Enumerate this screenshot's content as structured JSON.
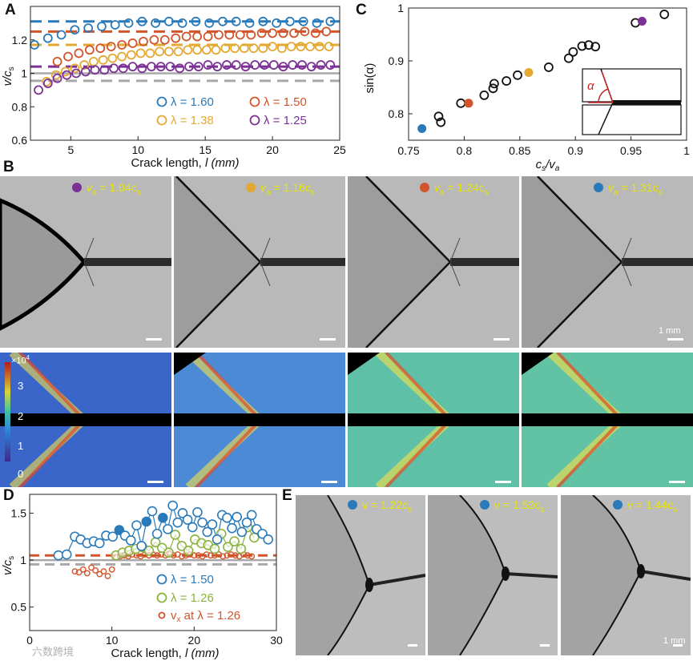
{
  "panels": {
    "A": {
      "letter": "A"
    },
    "B": {
      "letter": "B"
    },
    "C": {
      "letter": "C"
    },
    "D": {
      "letter": "D"
    },
    "E": {
      "letter": "E"
    }
  },
  "colors": {
    "blue": "#2a7ab9",
    "red": "#d2542a",
    "gold": "#e3a933",
    "purple": "#7b3294",
    "green": "#8ab33c",
    "gray": "#a8a8a8",
    "label_yellow": "#e6e600"
  },
  "chart_data": [
    {
      "id": "A",
      "type": "scatter",
      "xlabel": "Crack length, ",
      "xlabel_var": "l",
      "xlabel_unit": " (mm)",
      "ylabel_var": "v/c",
      "ylabel_sub": "s",
      "xlim": [
        2,
        25
      ],
      "ylim": [
        0.6,
        1.4
      ],
      "xticks": [
        5,
        10,
        15,
        20,
        25
      ],
      "yticks": [
        0.6,
        0.8,
        1,
        1.2
      ],
      "ref_lines": [
        {
          "y": 1.31,
          "color": "blue"
        },
        {
          "y": 1.25,
          "color": "red"
        },
        {
          "y": 1.17,
          "color": "gold"
        },
        {
          "y": 1.04,
          "color": "purple"
        },
        {
          "y": 1.0,
          "color": "gray",
          "solid": true
        },
        {
          "y": 0.955,
          "color": "gray"
        }
      ],
      "legend": [
        {
          "symbol": "○",
          "label": "λ = 1.60",
          "color": "blue"
        },
        {
          "symbol": "○",
          "label": "λ = 1.50",
          "color": "red"
        },
        {
          "symbol": "○",
          "label": "λ = 1.38",
          "color": "gold"
        },
        {
          "symbol": "○",
          "label": "λ = 1.25",
          "color": "purple"
        }
      ],
      "series": [
        {
          "name": "λ = 1.60",
          "color": "blue",
          "x": [
            2.3,
            3.3,
            4.3,
            5.3,
            6.3,
            7.3,
            8.3,
            9.3,
            10.3,
            11.3,
            12.3,
            13.3,
            14.3,
            15.3,
            16.3,
            17.3,
            18.3,
            19.3,
            20.3,
            21.3,
            22.3,
            23.3,
            24.3
          ],
          "y": [
            1.17,
            1.21,
            1.23,
            1.26,
            1.27,
            1.28,
            1.29,
            1.3,
            1.31,
            1.3,
            1.31,
            1.3,
            1.31,
            1.3,
            1.31,
            1.31,
            1.3,
            1.31,
            1.3,
            1.31,
            1.31,
            1.3,
            1.31
          ]
        },
        {
          "name": "λ = 1.50",
          "color": "red",
          "x": [
            4.0,
            4.8,
            5.6,
            6.4,
            7.2,
            8.0,
            8.8,
            9.6,
            10.4,
            11.2,
            12.0,
            12.8,
            13.6,
            14.4,
            15.2,
            16.0,
            16.8,
            17.6,
            18.4,
            19.2,
            20.0,
            20.8,
            21.6,
            22.4,
            23.2,
            24.0
          ],
          "y": [
            1.07,
            1.1,
            1.12,
            1.14,
            1.15,
            1.16,
            1.17,
            1.18,
            1.19,
            1.2,
            1.2,
            1.21,
            1.22,
            1.22,
            1.22,
            1.23,
            1.23,
            1.23,
            1.23,
            1.24,
            1.24,
            1.24,
            1.24,
            1.25,
            1.24,
            1.25
          ]
        },
        {
          "name": "λ = 1.38",
          "color": "gold",
          "x": [
            3.2,
            3.9,
            4.6,
            5.3,
            6.0,
            6.7,
            7.4,
            8.1,
            8.8,
            9.5,
            10.2,
            10.9,
            11.6,
            12.3,
            13.0,
            13.7,
            14.4,
            15.1,
            15.8,
            16.5,
            17.2,
            17.9,
            18.6,
            19.3,
            20.0,
            20.7,
            21.4,
            22.1,
            22.8,
            23.5,
            24.2
          ],
          "y": [
            0.95,
            0.99,
            1.01,
            1.03,
            1.05,
            1.07,
            1.08,
            1.09,
            1.1,
            1.11,
            1.12,
            1.12,
            1.13,
            1.13,
            1.13,
            1.14,
            1.14,
            1.14,
            1.14,
            1.15,
            1.15,
            1.15,
            1.15,
            1.15,
            1.16,
            1.15,
            1.16,
            1.16,
            1.16,
            1.16,
            1.16
          ]
        },
        {
          "name": "λ = 1.25",
          "color": "purple",
          "x": [
            2.6,
            3.3,
            4.0,
            4.7,
            5.4,
            6.1,
            6.8,
            7.5,
            8.2,
            8.9,
            9.6,
            10.3,
            11.0,
            11.7,
            12.4,
            13.1,
            13.8,
            14.5,
            15.2,
            15.9,
            16.6,
            17.3,
            18.0,
            18.7,
            19.4,
            20.1,
            20.8,
            21.5,
            22.2,
            22.9,
            23.6,
            24.3
          ],
          "y": [
            0.9,
            0.94,
            0.97,
            0.99,
            1.0,
            1.01,
            1.02,
            1.02,
            1.03,
            1.03,
            1.04,
            1.03,
            1.04,
            1.04,
            1.04,
            1.03,
            1.04,
            1.04,
            1.05,
            1.04,
            1.05,
            1.05,
            1.04,
            1.05,
            1.05,
            1.05,
            1.04,
            1.05,
            1.05,
            1.04,
            1.05,
            1.05
          ]
        }
      ]
    },
    {
      "id": "C",
      "type": "scatter",
      "xlabel_var": "c",
      "xlabel_sub": "s",
      "xlabel_mid": "/v",
      "xlabel_sub2": "a",
      "ylabel": "sin(α)",
      "xlim": [
        0.75,
        1.0
      ],
      "ylim": [
        0.75,
        1.0
      ],
      "xticks": [
        0.75,
        0.8,
        0.85,
        0.9,
        0.95,
        1
      ],
      "xtick_labels": [
        "0.75",
        "0.8",
        "0.85",
        "0.9",
        "0.95",
        "1"
      ],
      "yticks": [
        0.8,
        0.9,
        1
      ],
      "ytick_labels": [
        "0.8",
        "0.9",
        "1"
      ],
      "inset_label": "α",
      "points_open": [
        [
          0.777,
          0.795
        ],
        [
          0.779,
          0.784
        ],
        [
          0.797,
          0.82
        ],
        [
          0.818,
          0.835
        ],
        [
          0.826,
          0.848
        ],
        [
          0.827,
          0.857
        ],
        [
          0.838,
          0.862
        ],
        [
          0.848,
          0.873
        ],
        [
          0.876,
          0.888
        ],
        [
          0.894,
          0.905
        ],
        [
          0.898,
          0.917
        ],
        [
          0.906,
          0.928
        ],
        [
          0.912,
          0.93
        ],
        [
          0.918,
          0.927
        ],
        [
          0.954,
          0.972
        ],
        [
          0.98,
          0.988
        ]
      ],
      "points_filled": [
        {
          "x": 0.762,
          "y": 0.772,
          "color": "blue"
        },
        {
          "x": 0.804,
          "y": 0.82,
          "color": "red"
        },
        {
          "x": 0.858,
          "y": 0.878,
          "color": "gold"
        },
        {
          "x": 0.96,
          "y": 0.975,
          "color": "purple"
        }
      ]
    },
    {
      "id": "D",
      "type": "scatter",
      "xlabel": "Crack length, ",
      "xlabel_var": "l",
      "xlabel_unit": " (mm)",
      "ylabel_var": "v/c",
      "ylabel_sub": "s",
      "xlim": [
        0,
        30
      ],
      "ylim": [
        0.25,
        1.7
      ],
      "xticks": [
        0,
        10,
        20,
        30
      ],
      "yticks": [
        0.5,
        1,
        1.5
      ],
      "yticklabels": [
        "0.5",
        "1",
        "1.5"
      ],
      "ref_lines": [
        {
          "y": 1.05,
          "color": "red"
        },
        {
          "y": 1.0,
          "color": "gray",
          "solid": true
        },
        {
          "y": 0.955,
          "color": "gray"
        }
      ],
      "legend": [
        {
          "symbol": "○",
          "label": "λ = 1.50",
          "color": "blue"
        },
        {
          "symbol": "○",
          "label": "λ = 1.26",
          "color": "green"
        },
        {
          "symbol": "○",
          "label": "at λ = 1.26",
          "prefix": "v",
          "sub": "x",
          "color": "red",
          "small": true
        }
      ],
      "series": [
        {
          "name": "λ = 1.50",
          "color": "blue",
          "x": [
            3.5,
            4.5,
            5.5,
            6.2,
            7,
            7.8,
            8.5,
            9.3,
            10.1,
            10.9,
            11.6,
            12.3,
            13,
            13.6,
            14.2,
            14.9,
            15.5,
            16.2,
            16.8,
            17.4,
            18,
            18.6,
            19.2,
            19.8,
            20.4,
            21,
            21.6,
            22.2,
            22.8,
            23.4,
            24,
            24.6,
            25.2,
            25.8,
            26.4,
            27,
            27.6,
            28.3,
            29
          ],
          "y": [
            1.05,
            1.06,
            1.25,
            1.22,
            1.18,
            1.2,
            1.18,
            1.26,
            1.25,
            1.32,
            1.26,
            1.21,
            1.37,
            1.15,
            1.41,
            1.52,
            1.28,
            1.45,
            1.33,
            1.58,
            1.4,
            1.5,
            1.43,
            1.35,
            1.51,
            1.4,
            1.3,
            1.38,
            1.22,
            1.48,
            1.45,
            1.34,
            1.46,
            1.3,
            1.4,
            1.48,
            1.33,
            1.28,
            1.22
          ]
        },
        {
          "name": "λ = 1.26",
          "color": "green",
          "x": [
            10.5,
            11.3,
            12.1,
            12.9,
            13.7,
            14.5,
            15.3,
            16.1,
            16.9,
            17.7,
            18.5,
            19.3,
            20.1,
            20.9,
            21.7,
            22.5,
            23.3,
            24.1,
            24.9,
            25.7,
            26.5,
            27.3
          ],
          "y": [
            1.05,
            1.08,
            1.1,
            1.12,
            1.14,
            1.1,
            1.19,
            1.13,
            1.08,
            1.27,
            1.15,
            1.1,
            1.22,
            1.18,
            1.16,
            1.12,
            1.28,
            1.14,
            1.2,
            1.12,
            1.35,
            1.24
          ]
        },
        {
          "name": "vx at λ = 1.26",
          "color": "red",
          "x": [
            5.5,
            6,
            6.5,
            7,
            7.5,
            8,
            8.5,
            9,
            9.5,
            10,
            10.5,
            11,
            11.5,
            12,
            12.5,
            13,
            13.5,
            14,
            14.5,
            15,
            15.5,
            16,
            16.5,
            17,
            17.5,
            18,
            18.5,
            19,
            19.5,
            20,
            20.5,
            21,
            21.5,
            22,
            22.5,
            23,
            23.5,
            24,
            24.5,
            25,
            25.5,
            26,
            26.5,
            27
          ],
          "y": [
            0.88,
            0.87,
            0.9,
            0.86,
            0.92,
            0.89,
            0.85,
            0.88,
            0.83,
            0.9,
            1.03,
            1.04,
            1.05,
            1.04,
            1.06,
            1.05,
            1.04,
            1.06,
            1.05,
            1.06,
            1.05,
            1.06,
            1.05,
            1.07,
            1.05,
            1.06,
            1.04,
            1.05,
            1.06,
            1.05,
            1.05,
            1.04,
            1.06,
            1.05,
            1.05,
            1.06,
            1.04,
            1.05,
            1.06,
            1.05,
            1.04,
            1.06,
            1.05,
            1.04
          ]
        }
      ]
    }
  ],
  "panel_B": {
    "frames": [
      {
        "prefix": "v",
        "sub": "a",
        "value": " = 1.04c",
        "sub2": "s",
        "color": "purple"
      },
      {
        "prefix": "v",
        "sub": "a",
        "value": " = 1.16c",
        "sub2": "s",
        "color": "gold"
      },
      {
        "prefix": "v",
        "sub": "a",
        "value": " = 1.24c",
        "sub2": "s",
        "color": "red"
      },
      {
        "prefix": "v",
        "sub": "a",
        "value": " = 1.31c",
        "sub2": "s",
        "color": "blue"
      }
    ],
    "scale_label": "1 mm",
    "colorbar": {
      "exponent": "×10",
      "exponent_power": "4",
      "ticks": [
        "3",
        "2",
        "1",
        "0"
      ]
    }
  },
  "panel_E": {
    "frames": [
      {
        "prefix": "v",
        "value": " = 1.22c",
        "sub": "s",
        "color": "blue"
      },
      {
        "prefix": "v",
        "value": " = 1.52c",
        "sub": "s",
        "color": "blue"
      },
      {
        "prefix": "v",
        "value": " = 1.44c",
        "sub": "s",
        "color": "blue"
      }
    ],
    "scale_label": "1 mm"
  },
  "watermark": "六数跨境"
}
